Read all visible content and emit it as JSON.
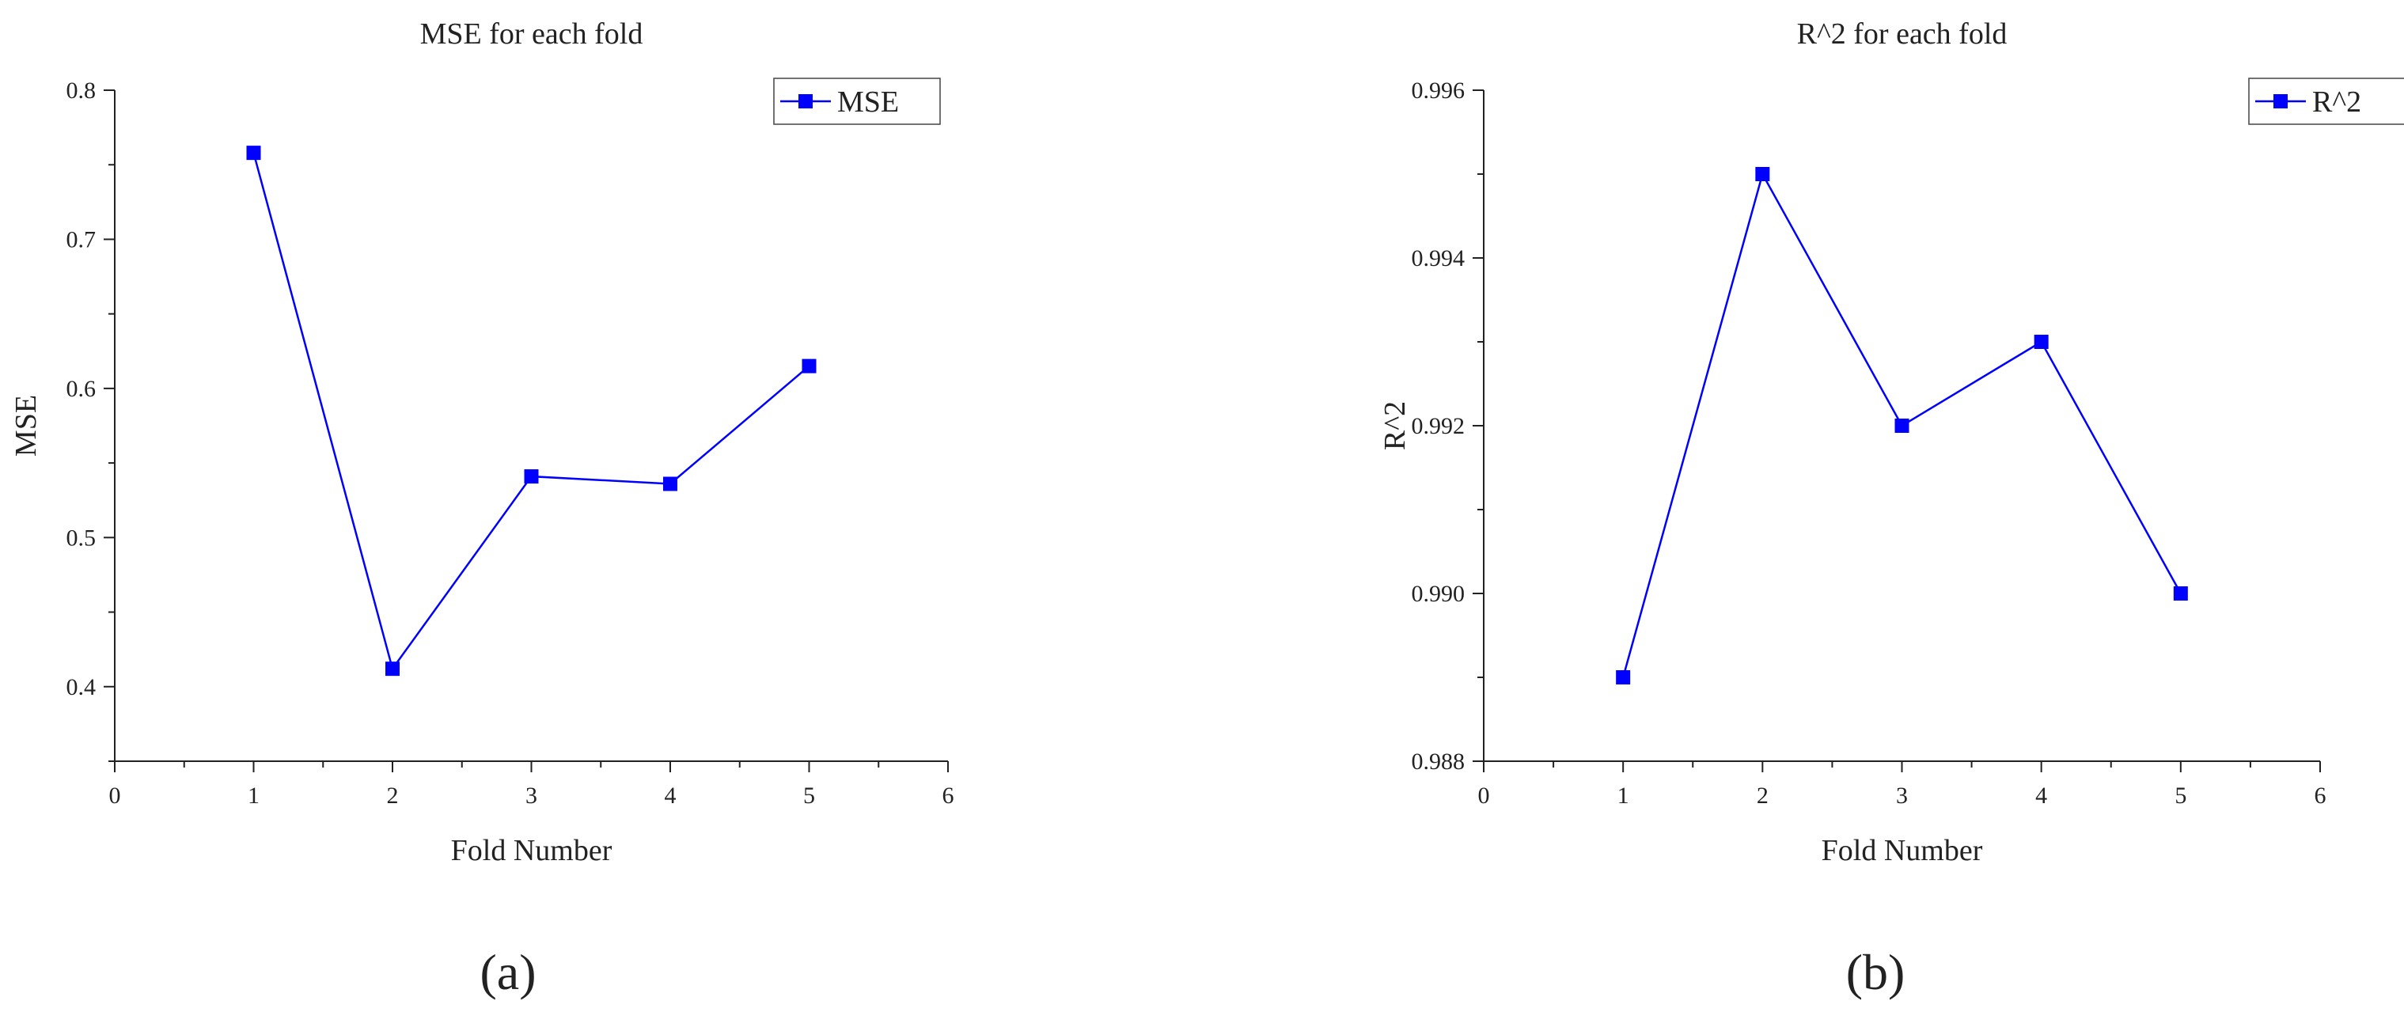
{
  "chart_data": [
    {
      "type": "line",
      "title": "MSE for each fold",
      "xlabel": "Fold Number",
      "ylabel": "MSE",
      "xlim": [
        0,
        6
      ],
      "ylim": [
        0.35,
        0.8
      ],
      "xticks": [
        0,
        1,
        2,
        3,
        4,
        5,
        6
      ],
      "yticks": [
        0.4,
        0.5,
        0.6,
        0.7,
        0.8
      ],
      "xtick_labels": [
        "0",
        "1",
        "2",
        "3",
        "4",
        "5",
        "6"
      ],
      "ytick_labels": [
        "0.4",
        "0.5",
        "0.6",
        "0.7",
        "0.8"
      ],
      "legend": "top-right",
      "grid": false,
      "series": [
        {
          "name": "MSE",
          "color": "#0000ff",
          "marker": "square",
          "x": [
            1,
            2,
            3,
            4,
            5
          ],
          "values": [
            0.758,
            0.412,
            0.541,
            0.536,
            0.615
          ]
        }
      ],
      "panel_label": "(a)"
    },
    {
      "type": "line",
      "title": "R^2 for each fold",
      "xlabel": "Fold Number",
      "ylabel": "R^2",
      "xlim": [
        0,
        6
      ],
      "ylim": [
        0.988,
        0.996
      ],
      "xticks": [
        0,
        1,
        2,
        3,
        4,
        5,
        6
      ],
      "yticks": [
        0.988,
        0.99,
        0.992,
        0.994,
        0.996
      ],
      "xtick_labels": [
        "0",
        "1",
        "2",
        "3",
        "4",
        "5",
        "6"
      ],
      "ytick_labels": [
        "0.988",
        "0.990",
        "0.992",
        "0.994",
        "0.996"
      ],
      "legend": "top-right",
      "grid": false,
      "series": [
        {
          "name": "R^2",
          "color": "#0000ff",
          "marker": "square",
          "x": [
            1,
            2,
            3,
            4,
            5
          ],
          "values": [
            0.989,
            0.995,
            0.992,
            0.993,
            0.99
          ]
        }
      ],
      "panel_label": "(b)"
    }
  ]
}
